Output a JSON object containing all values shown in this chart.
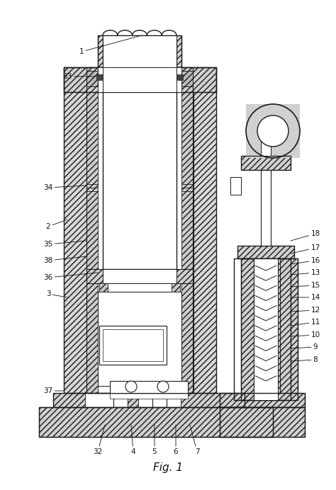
{
  "title": "Fig. 1",
  "bg_color": "#ffffff",
  "lc": "#1a1a1a",
  "fig_width": 4.74,
  "fig_height": 6.92,
  "dpi": 100
}
